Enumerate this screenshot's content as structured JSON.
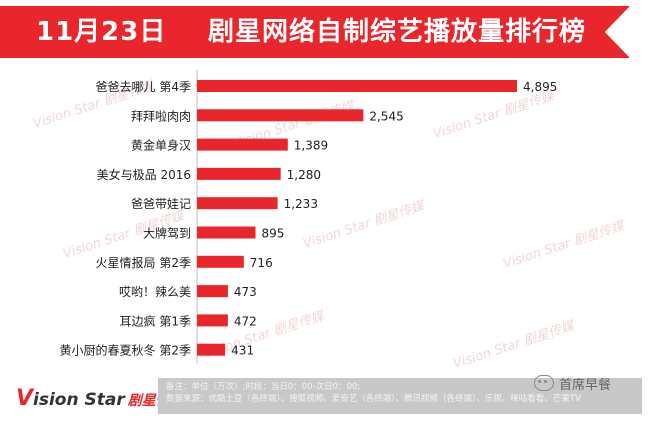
{
  "header": {
    "date": "11月23日",
    "title": "剧星网络自制综艺播放量排行榜"
  },
  "chart_data": {
    "type": "bar",
    "orientation": "horizontal",
    "categories": [
      "爸爸去哪儿 第4季",
      "拜拜啦肉肉",
      "黄金单身汉",
      "美女与极品 2016",
      "爸爸带娃记",
      "大牌驾到",
      "火星情报局 第2季",
      "哎哟！辣么美",
      "耳边疯 第1季",
      "黄小厨的春夏秋冬 第2季"
    ],
    "values": [
      4895,
      2545,
      1389,
      1280,
      1233,
      895,
      716,
      473,
      472,
      431
    ],
    "value_labels": [
      "4,895",
      "2,545",
      "1,389",
      "1,280",
      "1,233",
      "895",
      "716",
      "473",
      "472",
      "431"
    ],
    "bar_color": "#e8262b",
    "grid": false
  },
  "watermark": "Vision Star 剧星传媒",
  "footer": {
    "logo_main": "ision Star",
    "logo_v": "V",
    "logo_cn": "剧星传媒",
    "note_line1": "备注：单位（万次）;时段：当日0：00-次日0：00;",
    "note_line2": "数据来源：优酷土豆（各终端）、搜狐视频、爱奇艺（各终端）、腾讯视频（各终端）、乐视、咪咕看看、芒果TV",
    "wechat_label": "首席早餐"
  },
  "colors": {
    "accent": "#e8262b",
    "footer_bg": "#c8c8c8"
  }
}
